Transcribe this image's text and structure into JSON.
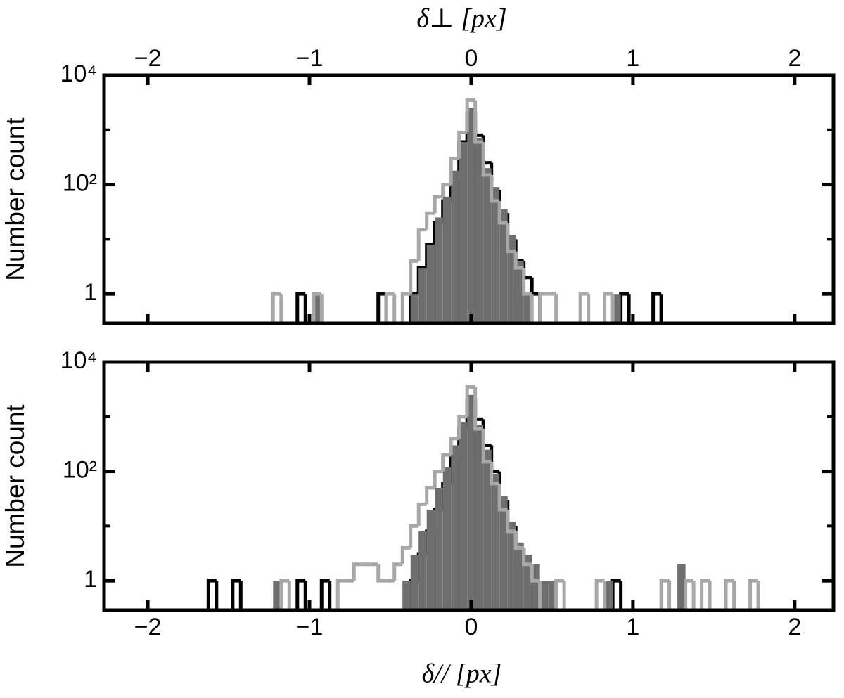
{
  "chart_data": [
    {
      "type": "histogram",
      "xlabel": "δ⊥  [px]",
      "ylabel": "Number count",
      "x_axis_side": "top",
      "xlim": [
        -2.27,
        2.24
      ],
      "ylim": [
        0.29,
        10000
      ],
      "log_y": true,
      "xticks": [
        {
          "value": -2,
          "label": "−2"
        },
        {
          "value": -1,
          "label": "−1"
        },
        0,
        1,
        2
      ],
      "yticks": [
        1,
        {
          "value": 100,
          "label": "10²"
        },
        {
          "value": 10000,
          "label": "10⁴"
        }
      ],
      "yminorticks": [
        10,
        1000
      ],
      "bins": [
        -1.225,
        -1.175,
        -1.125,
        -1.075,
        -1.025,
        -0.975,
        -0.925,
        -0.875,
        -0.825,
        -0.775,
        -0.725,
        -0.675,
        -0.625,
        -0.575,
        -0.525,
        -0.475,
        -0.425,
        -0.375,
        -0.325,
        -0.275,
        -0.225,
        -0.175,
        -0.125,
        -0.075,
        -0.025,
        0.025,
        0.075,
        0.125,
        0.175,
        0.225,
        0.275,
        0.325,
        0.375,
        0.425,
        0.475,
        0.525,
        0.575,
        0.625,
        0.675,
        0.725,
        0.775,
        0.825,
        0.875,
        0.925,
        0.975,
        1.025,
        1.075,
        1.125,
        1.175,
        1.225
      ],
      "series": [
        {
          "color": "#000000",
          "filled": false,
          "values": [
            0,
            0,
            0,
            1,
            0,
            0,
            0,
            0,
            0,
            0,
            0,
            0,
            0,
            1,
            0,
            0,
            0,
            1,
            3,
            8,
            20,
            50,
            150,
            600,
            2000,
            800,
            250,
            80,
            30,
            10,
            4,
            2,
            1,
            0,
            0,
            0,
            0,
            0,
            0,
            0,
            0,
            0,
            0,
            1,
            0,
            0,
            0,
            1,
            0
          ]
        },
        {
          "color": "#6e6e6e",
          "filled": true,
          "values": [
            0,
            0,
            0,
            0,
            0,
            1,
            0,
            0,
            0,
            0,
            0,
            0,
            0,
            0,
            0,
            0,
            0,
            1,
            3,
            8,
            25,
            60,
            180,
            600,
            2500,
            700,
            200,
            90,
            35,
            12,
            4,
            1,
            0,
            0,
            0,
            0,
            0,
            0,
            0,
            0,
            0,
            0,
            1,
            0,
            0,
            0,
            0,
            0,
            0
          ]
        },
        {
          "color": "#a8a8a8",
          "filled": false,
          "values": [
            1,
            0,
            0,
            0,
            0,
            1,
            0,
            0,
            0,
            0,
            0,
            0,
            0,
            0,
            1,
            0,
            1,
            4,
            15,
            30,
            60,
            100,
            300,
            900,
            3500,
            600,
            150,
            50,
            20,
            6,
            3,
            1,
            0,
            1,
            1,
            0,
            0,
            0,
            1,
            0,
            0,
            1,
            0,
            0,
            0,
            0,
            0,
            0,
            0
          ]
        }
      ]
    },
    {
      "type": "histogram",
      "xlabel": "δ//  [px]",
      "ylabel": "Number count",
      "x_axis_side": "bottom",
      "xlim": [
        -2.27,
        2.24
      ],
      "ylim": [
        0.29,
        10000
      ],
      "log_y": true,
      "xticks": [
        {
          "value": -2,
          "label": "−2"
        },
        {
          "value": -1,
          "label": "−1"
        },
        0,
        1,
        2
      ],
      "yticks": [
        1,
        {
          "value": 100,
          "label": "10²"
        },
        {
          "value": 10000,
          "label": "10⁴"
        }
      ],
      "yminorticks": [
        10,
        1000
      ],
      "bins": [
        -1.675,
        -1.625,
        -1.575,
        -1.525,
        -1.475,
        -1.425,
        -1.375,
        -1.325,
        -1.275,
        -1.225,
        -1.175,
        -1.125,
        -1.075,
        -1.025,
        -0.975,
        -0.925,
        -0.875,
        -0.825,
        -0.775,
        -0.725,
        -0.675,
        -0.625,
        -0.575,
        -0.525,
        -0.475,
        -0.425,
        -0.375,
        -0.325,
        -0.275,
        -0.225,
        -0.175,
        -0.125,
        -0.075,
        -0.025,
        0.025,
        0.075,
        0.125,
        0.175,
        0.225,
        0.275,
        0.325,
        0.375,
        0.425,
        0.475,
        0.525,
        0.575,
        0.625,
        0.675,
        0.725,
        0.775,
        0.825,
        0.875,
        0.925,
        0.975,
        1.025,
        1.075,
        1.125,
        1.175,
        1.225,
        1.275,
        1.325,
        1.375,
        1.425,
        1.475,
        1.525,
        1.575,
        1.625,
        1.675,
        1.725,
        1.775,
        1.825
      ],
      "series": [
        {
          "color": "#000000",
          "filled": false,
          "values": [
            0,
            1,
            0,
            0,
            1,
            0,
            0,
            0,
            0,
            0,
            0,
            0,
            1,
            0,
            0,
            1,
            0,
            0,
            0,
            0,
            0,
            0,
            0,
            0,
            0,
            0,
            1,
            3,
            8,
            20,
            60,
            200,
            600,
            2000,
            900,
            300,
            100,
            30,
            10,
            4,
            2,
            1,
            0,
            0,
            0,
            0,
            0,
            0,
            0,
            0,
            0,
            1,
            0,
            0,
            0,
            0,
            0,
            0,
            0,
            0,
            0,
            0,
            0,
            0,
            0,
            0,
            0,
            0,
            0,
            0
          ]
        },
        {
          "color": "#6e6e6e",
          "filled": true,
          "values": [
            0,
            0,
            0,
            0,
            0,
            0,
            0,
            0,
            0,
            1,
            0,
            0,
            0,
            0,
            0,
            0,
            0,
            0,
            0,
            0,
            0,
            0,
            0,
            0,
            0,
            1,
            3,
            8,
            20,
            50,
            120,
            300,
            800,
            2500,
            700,
            250,
            90,
            35,
            12,
            5,
            3,
            2,
            1,
            1,
            0,
            0,
            0,
            0,
            0,
            0,
            1,
            0,
            0,
            0,
            0,
            0,
            0,
            0,
            0,
            2,
            0,
            0,
            0,
            0,
            0,
            0,
            0,
            0,
            0,
            0
          ]
        },
        {
          "color": "#a8a8a8",
          "filled": false,
          "values": [
            0,
            0,
            0,
            0,
            0,
            0,
            0,
            0,
            0,
            0,
            1,
            0,
            0,
            0,
            0,
            0,
            0,
            1,
            1,
            2,
            2,
            2,
            1,
            1,
            2,
            4,
            10,
            25,
            50,
            100,
            200,
            400,
            1000,
            3500,
            600,
            150,
            60,
            20,
            8,
            4,
            2,
            1,
            0,
            0,
            1,
            0,
            0,
            0,
            0,
            1,
            0,
            0,
            0,
            0,
            0,
            0,
            0,
            1,
            0,
            0,
            1,
            0,
            1,
            0,
            0,
            1,
            0,
            0,
            1,
            0
          ]
        }
      ]
    }
  ]
}
